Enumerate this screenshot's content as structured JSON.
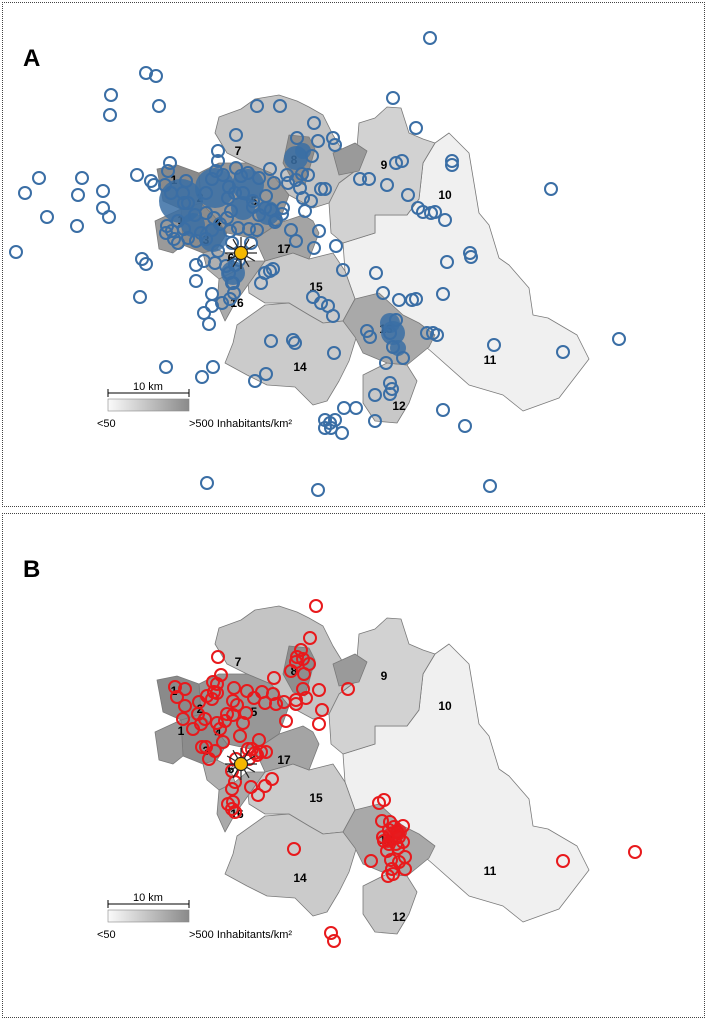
{
  "panels": [
    {
      "label": "A",
      "marker_color": "#3a6ea5",
      "points": [
        [
          427,
          35
        ],
        [
          143,
          70
        ],
        [
          153,
          73
        ],
        [
          108,
          92
        ],
        [
          107,
          112
        ],
        [
          156,
          103
        ],
        [
          254,
          103
        ],
        [
          277,
          103
        ],
        [
          390,
          95
        ],
        [
          413,
          125
        ],
        [
          311,
          120
        ],
        [
          330,
          135
        ],
        [
          294,
          135
        ],
        [
          233,
          132
        ],
        [
          22,
          190
        ],
        [
          36,
          175
        ],
        [
          44,
          214
        ],
        [
          74,
          223
        ],
        [
          75,
          192
        ],
        [
          79,
          175
        ],
        [
          100,
          188
        ],
        [
          100,
          205
        ],
        [
          106,
          214
        ],
        [
          13,
          249
        ],
        [
          134,
          172
        ],
        [
          143,
          261
        ],
        [
          139,
          256
        ],
        [
          137,
          294
        ],
        [
          163,
          364
        ],
        [
          199,
          374
        ],
        [
          210,
          364
        ],
        [
          206,
          321
        ],
        [
          229,
          280
        ],
        [
          201,
          310
        ],
        [
          209,
          303
        ],
        [
          219,
          300
        ],
        [
          263,
          371
        ],
        [
          252,
          378
        ],
        [
          268,
          338
        ],
        [
          290,
          337
        ],
        [
          292,
          340
        ],
        [
          331,
          350
        ],
        [
          330,
          313
        ],
        [
          318,
          300
        ],
        [
          325,
          303
        ],
        [
          310,
          294
        ],
        [
          340,
          267
        ],
        [
          316,
          228
        ],
        [
          333,
          243
        ],
        [
          311,
          245
        ],
        [
          293,
          238
        ],
        [
          288,
          227
        ],
        [
          273,
          217
        ],
        [
          254,
          227
        ],
        [
          248,
          240
        ],
        [
          229,
          240
        ],
        [
          236,
          257
        ],
        [
          267,
          268
        ],
        [
          258,
          280
        ],
        [
          262,
          270
        ],
        [
          270,
          266
        ],
        [
          373,
          270
        ],
        [
          380,
          290
        ],
        [
          396,
          297
        ],
        [
          409,
          297
        ],
        [
          413,
          296
        ],
        [
          393,
          317
        ],
        [
          387,
          330
        ],
        [
          390,
          344
        ],
        [
          400,
          355
        ],
        [
          383,
          360
        ],
        [
          387,
          380
        ],
        [
          389,
          386
        ],
        [
          387,
          391
        ],
        [
          372,
          392
        ],
        [
          372,
          418
        ],
        [
          341,
          405
        ],
        [
          353,
          405
        ],
        [
          339,
          430
        ],
        [
          322,
          417
        ],
        [
          327,
          420
        ],
        [
          332,
          417
        ],
        [
          322,
          425
        ],
        [
          328,
          425
        ],
        [
          367,
          334
        ],
        [
          364,
          328
        ],
        [
          430,
          330
        ],
        [
          434,
          332
        ],
        [
          424,
          330
        ],
        [
          440,
          291
        ],
        [
          444,
          259
        ],
        [
          467,
          250
        ],
        [
          468,
          254
        ],
        [
          442,
          217
        ],
        [
          420,
          209
        ],
        [
          415,
          205
        ],
        [
          405,
          192
        ],
        [
          428,
          210
        ],
        [
          432,
          209
        ],
        [
          449,
          158
        ],
        [
          449,
          162
        ],
        [
          548,
          186
        ],
        [
          616,
          336
        ],
        [
          560,
          349
        ],
        [
          491,
          342
        ],
        [
          462,
          423
        ],
        [
          440,
          407
        ],
        [
          487,
          483
        ],
        [
          315,
          487
        ],
        [
          204,
          480
        ],
        [
          399,
          158
        ],
        [
          393,
          160
        ],
        [
          384,
          182
        ],
        [
          366,
          176
        ],
        [
          357,
          176
        ],
        [
          332,
          142
        ],
        [
          315,
          138
        ],
        [
          309,
          153
        ],
        [
          305,
          172
        ],
        [
          318,
          186
        ],
        [
          322,
          186
        ],
        [
          308,
          198
        ],
        [
          302,
          208
        ],
        [
          267,
          166
        ],
        [
          271,
          180
        ],
        [
          284,
          172
        ],
        [
          299,
          171
        ],
        [
          285,
          180
        ],
        [
          293,
          177
        ],
        [
          297,
          185
        ],
        [
          300,
          195
        ],
        [
          280,
          205
        ],
        [
          279,
          211
        ],
        [
          268,
          207
        ],
        [
          272,
          219
        ],
        [
          250,
          204
        ],
        [
          250,
          198
        ],
        [
          240,
          190
        ],
        [
          232,
          190
        ],
        [
          226,
          184
        ],
        [
          225,
          195
        ],
        [
          220,
          172
        ],
        [
          213,
          168
        ],
        [
          215,
          158
        ],
        [
          215,
          148
        ],
        [
          209,
          176
        ],
        [
          203,
          190
        ],
        [
          203,
          210
        ],
        [
          211,
          215
        ],
        [
          192,
          212
        ],
        [
          185,
          200
        ],
        [
          180,
          190
        ],
        [
          168,
          190
        ],
        [
          162,
          182
        ],
        [
          151,
          182
        ],
        [
          148,
          178
        ],
        [
          165,
          168
        ],
        [
          167,
          160
        ],
        [
          183,
          178
        ],
        [
          181,
          200
        ],
        [
          175,
          218
        ],
        [
          164,
          223
        ],
        [
          163,
          230
        ],
        [
          171,
          236
        ],
        [
          185,
          235
        ],
        [
          193,
          238
        ],
        [
          203,
          236
        ],
        [
          215,
          248
        ],
        [
          212,
          260
        ],
        [
          201,
          258
        ],
        [
          193,
          262
        ],
        [
          223,
          263
        ],
        [
          226,
          270
        ],
        [
          232,
          262
        ],
        [
          230,
          280
        ],
        [
          231,
          290
        ],
        [
          227,
          296
        ],
        [
          209,
          291
        ],
        [
          193,
          278
        ],
        [
          235,
          225
        ],
        [
          227,
          228
        ],
        [
          246,
          226
        ],
        [
          256,
          212
        ],
        [
          262,
          205
        ],
        [
          263,
          193
        ],
        [
          256,
          175
        ],
        [
          245,
          170
        ],
        [
          233,
          165
        ],
        [
          238,
          173
        ],
        [
          228,
          208
        ],
        [
          224,
          215
        ],
        [
          217,
          221
        ],
        [
          209,
          227
        ],
        [
          198,
          230
        ],
        [
          181,
          226
        ],
        [
          175,
          240
        ],
        [
          169,
          228
        ]
      ],
      "clusters": [
        [
          178,
          198,
          22
        ],
        [
          212,
          185,
          20
        ],
        [
          245,
          182,
          16
        ],
        [
          265,
          210,
          12
        ],
        [
          210,
          235,
          14
        ],
        [
          190,
          222,
          12
        ],
        [
          240,
          205,
          12
        ],
        [
          293,
          155,
          12
        ],
        [
          300,
          148,
          8
        ],
        [
          230,
          270,
          12
        ],
        [
          390,
          330,
          12
        ],
        [
          387,
          320,
          10
        ],
        [
          395,
          345,
          8
        ]
      ]
    },
    {
      "label": "B",
      "marker_color": "#e8191c",
      "points": [
        [
          313,
          92
        ],
        [
          307,
          124
        ],
        [
          298,
          136
        ],
        [
          300,
          145
        ],
        [
          293,
          148
        ],
        [
          306,
          150
        ],
        [
          294,
          143
        ],
        [
          288,
          157
        ],
        [
          301,
          160
        ],
        [
          345,
          175
        ],
        [
          316,
          176
        ],
        [
          319,
          196
        ],
        [
          316,
          210
        ],
        [
          283,
          207
        ],
        [
          300,
          175
        ],
        [
          303,
          184
        ],
        [
          293,
          186
        ],
        [
          293,
          190
        ],
        [
          281,
          188
        ],
        [
          273,
          190
        ],
        [
          270,
          180
        ],
        [
          271,
          164
        ],
        [
          259,
          178
        ],
        [
          262,
          189
        ],
        [
          251,
          184
        ],
        [
          244,
          177
        ],
        [
          243,
          199
        ],
        [
          240,
          209
        ],
        [
          230,
          201
        ],
        [
          222,
          207
        ],
        [
          224,
          200
        ],
        [
          231,
          174
        ],
        [
          234,
          191
        ],
        [
          230,
          187
        ],
        [
          215,
          143
        ],
        [
          218,
          161
        ],
        [
          214,
          170
        ],
        [
          211,
          178
        ],
        [
          209,
          185
        ],
        [
          214,
          179
        ],
        [
          204,
          182
        ],
        [
          210,
          168
        ],
        [
          182,
          175
        ],
        [
          172,
          173
        ],
        [
          174,
          183
        ],
        [
          182,
          192
        ],
        [
          180,
          205
        ],
        [
          196,
          188
        ],
        [
          195,
          200
        ],
        [
          202,
          205
        ],
        [
          198,
          210
        ],
        [
          214,
          209
        ],
        [
          190,
          215
        ],
        [
          203,
          233
        ],
        [
          212,
          237
        ],
        [
          206,
          245
        ],
        [
          199,
          233
        ],
        [
          237,
          222
        ],
        [
          249,
          235
        ],
        [
          254,
          241
        ],
        [
          258,
          238
        ],
        [
          263,
          238
        ],
        [
          246,
          245
        ],
        [
          233,
          245
        ],
        [
          229,
          257
        ],
        [
          232,
          268
        ],
        [
          229,
          275
        ],
        [
          230,
          288
        ],
        [
          229,
          295
        ],
        [
          225,
          290
        ],
        [
          232,
          298
        ],
        [
          248,
          273
        ],
        [
          255,
          281
        ],
        [
          262,
          272
        ],
        [
          269,
          265
        ],
        [
          291,
          335
        ],
        [
          368,
          347
        ],
        [
          376,
          289
        ],
        [
          381,
          286
        ],
        [
          380,
          323
        ],
        [
          386,
          316
        ],
        [
          394,
          318
        ],
        [
          396,
          323
        ],
        [
          400,
          328
        ],
        [
          395,
          334
        ],
        [
          402,
          343
        ],
        [
          388,
          346
        ],
        [
          389,
          355
        ],
        [
          390,
          360
        ],
        [
          385,
          362
        ],
        [
          402,
          355
        ],
        [
          396,
          348
        ],
        [
          384,
          337
        ],
        [
          386,
          330
        ],
        [
          393,
          330
        ],
        [
          400,
          312
        ],
        [
          391,
          313
        ],
        [
          381,
          327
        ],
        [
          387,
          308
        ],
        [
          379,
          307
        ],
        [
          560,
          347
        ],
        [
          632,
          338
        ],
        [
          328,
          419
        ],
        [
          331,
          427
        ],
        [
          252,
          239
        ],
        [
          256,
          226
        ],
        [
          245,
          235
        ],
        [
          217,
          215
        ],
        [
          220,
          228
        ]
      ],
      "clusters": [
        [
          390,
          322,
          10
        ],
        [
          396,
          318,
          8
        ],
        [
          385,
          328,
          6
        ]
      ]
    }
  ],
  "districts": [
    {
      "id": "1",
      "pos": [
        171,
        177
      ]
    },
    {
      "id": "1",
      "pos": [
        178,
        217
      ]
    },
    {
      "id": "2",
      "pos": [
        197,
        195
      ]
    },
    {
      "id": "3",
      "pos": [
        203,
        237
      ]
    },
    {
      "id": "4",
      "pos": [
        215,
        219
      ]
    },
    {
      "id": "5",
      "pos": [
        251,
        198
      ]
    },
    {
      "id": "6",
      "pos": [
        228,
        255
      ]
    },
    {
      "id": "7",
      "pos": [
        235,
        148
      ]
    },
    {
      "id": "8",
      "pos": [
        291,
        157
      ]
    },
    {
      "id": "9",
      "pos": [
        381,
        162
      ]
    },
    {
      "id": "10",
      "pos": [
        442,
        192
      ]
    },
    {
      "id": "11",
      "pos": [
        487,
        357
      ]
    },
    {
      "id": "12",
      "pos": [
        396,
        403
      ]
    },
    {
      "id": "13",
      "pos": [
        383,
        326
      ]
    },
    {
      "id": "14",
      "pos": [
        297,
        364
      ]
    },
    {
      "id": "15",
      "pos": [
        313,
        284
      ]
    },
    {
      "id": "16",
      "pos": [
        234,
        300
      ]
    },
    {
      "id": "17",
      "pos": [
        281,
        246
      ]
    }
  ],
  "legend": {
    "scale_label": "10 km",
    "min_label": "<50",
    "max_label": ">500 Inhabitants/km²"
  }
}
